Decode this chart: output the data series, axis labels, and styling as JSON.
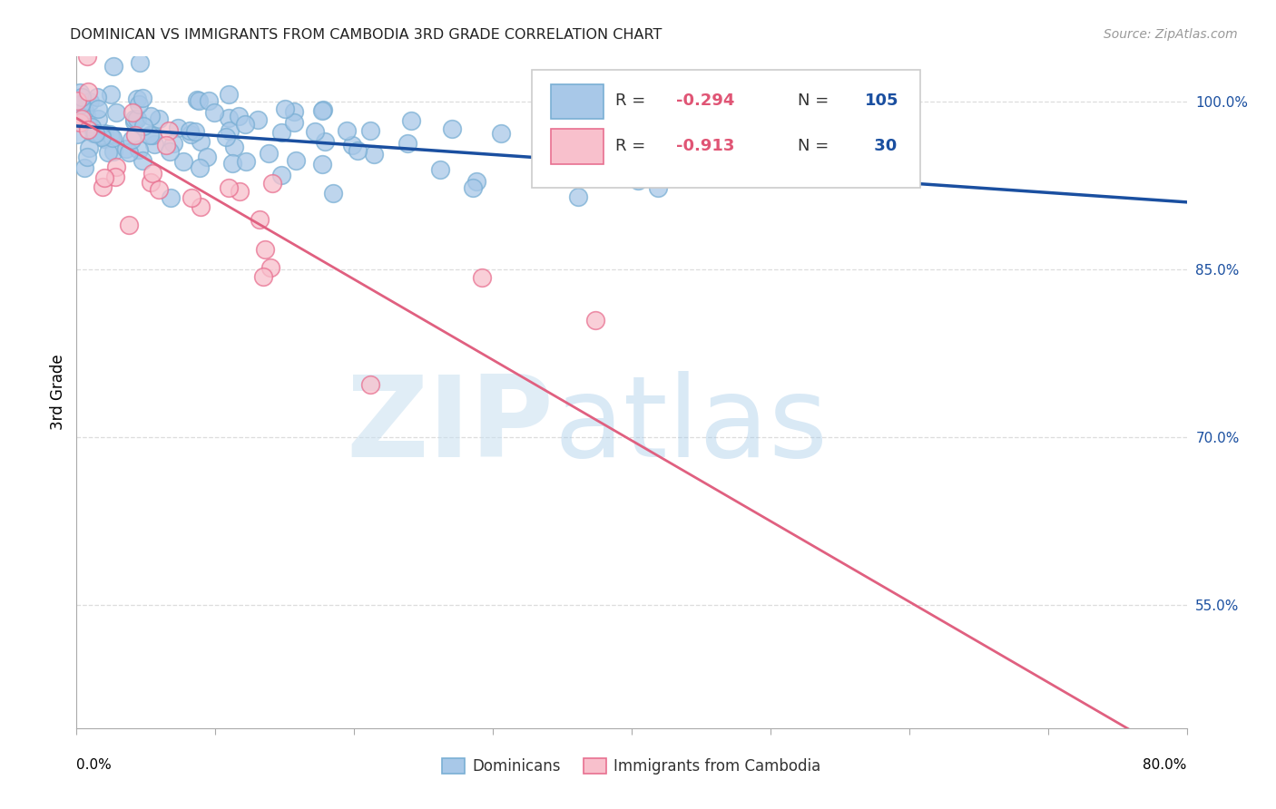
{
  "title": "DOMINICAN VS IMMIGRANTS FROM CAMBODIA 3RD GRADE CORRELATION CHART",
  "source": "Source: ZipAtlas.com",
  "ylabel": "3rd Grade",
  "watermark_zip": "ZIP",
  "watermark_atlas": "atlas",
  "xlim": [
    0.0,
    80.0
  ],
  "ylim": [
    44.0,
    104.0
  ],
  "yticks_right": [
    55.0,
    70.0,
    85.0,
    100.0
  ],
  "ytick_labels_right": [
    "55.0%",
    "70.0%",
    "85.0%",
    "100.0%"
  ],
  "blue_R": -0.294,
  "blue_N": 105,
  "pink_R": -0.913,
  "pink_N": 30,
  "blue_color": "#a8c8e8",
  "blue_edge_color": "#7aafd4",
  "blue_line_color": "#1a4fa0",
  "pink_color": "#f8c0cc",
  "pink_edge_color": "#e87090",
  "pink_line_color": "#e06080",
  "blue_label": "Dominicans",
  "pink_label": "Immigrants from Cambodia",
  "blue_scatter_seed": 42,
  "pink_scatter_seed": 99,
  "blue_y_intercept": 97.8,
  "blue_slope": -0.085,
  "pink_y_intercept": 98.5,
  "pink_slope": -0.72,
  "legend_R_color": "#e05575",
  "legend_N_color": "#1a4fa0",
  "xtick_positions": [
    0,
    10,
    20,
    30,
    40,
    50,
    60,
    70,
    80
  ],
  "grid_color": "#dddddd",
  "spine_color": "#aaaaaa"
}
